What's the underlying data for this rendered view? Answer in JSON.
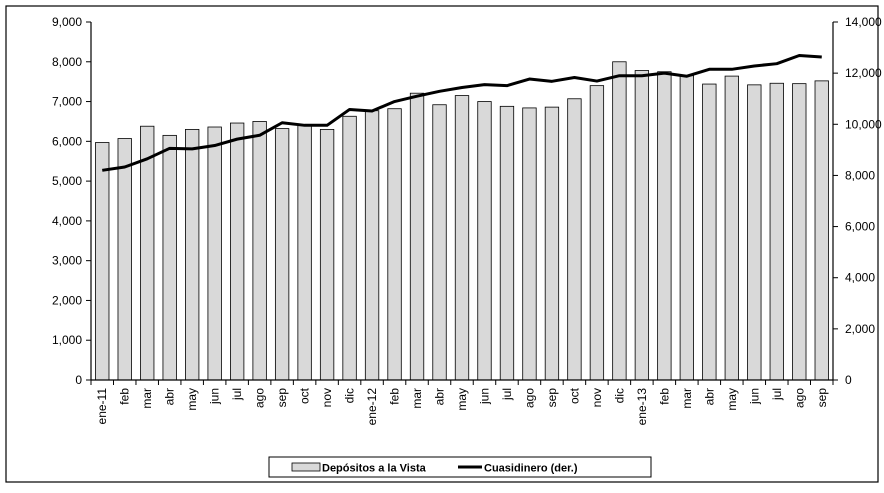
{
  "chart_data": {
    "type": "bar+line",
    "categories": [
      "ene-11",
      "feb",
      "mar",
      "abr",
      "may",
      "jun",
      "jul",
      "ago",
      "sep",
      "oct",
      "nov",
      "dic",
      "ene-12",
      "feb",
      "mar",
      "abr",
      "may",
      "jun",
      "jul",
      "ago",
      "sep",
      "oct",
      "nov",
      "dic",
      "ene-13",
      "feb",
      "mar",
      "abr",
      "may",
      "jun",
      "jul",
      "ago",
      "sep"
    ],
    "series": [
      {
        "name": "Depósitos a la Vista",
        "type": "bar",
        "axis": "left",
        "color": "#d9d9d9",
        "values": [
          5970,
          6070,
          6380,
          6150,
          6300,
          6360,
          6460,
          6500,
          6320,
          6400,
          6300,
          6630,
          6770,
          6820,
          7210,
          6920,
          7150,
          7000,
          6880,
          6840,
          6860,
          7070,
          7400,
          8000,
          7780,
          7750,
          7650,
          7440,
          7640,
          7420,
          7460,
          7450,
          7520
        ]
      },
      {
        "name": "Cuasidinero (der.)",
        "type": "line",
        "axis": "right",
        "color": "#000000",
        "values": [
          8200,
          8330,
          8650,
          9060,
          9040,
          9170,
          9420,
          9570,
          10060,
          9960,
          9960,
          10580,
          10520,
          10890,
          11100,
          11290,
          11440,
          11550,
          11510,
          11770,
          11680,
          11830,
          11690,
          11900,
          11900,
          12000,
          11880,
          12150,
          12150,
          12280,
          12370,
          12690,
          12630
        ]
      }
    ],
    "y_left": {
      "ylim": [
        0,
        9000
      ],
      "ticks": [
        "0",
        "1,000",
        "2,000",
        "3,000",
        "4,000",
        "5,000",
        "6,000",
        "7,000",
        "8,000",
        "9,000"
      ]
    },
    "y_right": {
      "ylim": [
        0,
        14000
      ],
      "ticks": [
        "0",
        "2,000",
        "4,000",
        "6,000",
        "8,000",
        "10,000",
        "12,000",
        "14,000"
      ]
    },
    "legend_position": "bottom",
    "grid": false
  }
}
